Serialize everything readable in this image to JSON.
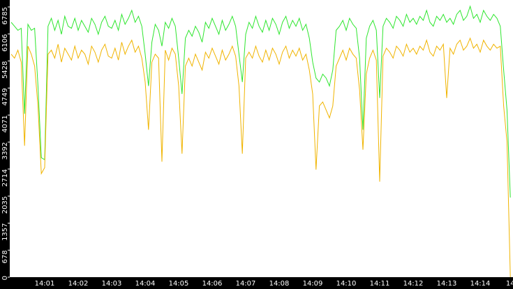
{
  "chart_data": {
    "type": "line",
    "categories": [
      null,
      null,
      null,
      null,
      null,
      null,
      null,
      null,
      null,
      null,
      "14:01",
      null,
      null,
      null,
      null,
      null,
      null,
      null,
      null,
      null,
      "14:02",
      null,
      null,
      null,
      null,
      null,
      null,
      null,
      null,
      null,
      "14:03",
      null,
      null,
      null,
      null,
      null,
      null,
      null,
      null,
      null,
      "14:04",
      null,
      null,
      null,
      null,
      null,
      null,
      null,
      null,
      null,
      "14:05",
      null,
      null,
      null,
      null,
      null,
      null,
      null,
      null,
      null,
      "14:06",
      null,
      null,
      null,
      null,
      null,
      null,
      null,
      null,
      null,
      "14:07",
      null,
      null,
      null,
      null,
      null,
      null,
      null,
      null,
      null,
      "14:08",
      null,
      null,
      null,
      null,
      null,
      null,
      null,
      null,
      null,
      "14:09",
      null,
      null,
      null,
      null,
      null,
      null,
      null,
      null,
      null,
      "14:10",
      null,
      null,
      null,
      null,
      null,
      null,
      null,
      null,
      null,
      "14:11",
      null,
      null,
      null,
      null,
      null,
      null,
      null,
      null,
      null,
      "14:12",
      null,
      null,
      null,
      null,
      null,
      null,
      null,
      null,
      null,
      "14:13",
      null,
      null,
      null,
      null,
      null,
      null,
      null,
      null,
      null,
      "14:14",
      null,
      null,
      null,
      null,
      null,
      null,
      null,
      null,
      "14"
    ],
    "series": [
      {
        "color": "#2ee62e",
        "values": [
          6400,
          6300,
          6200,
          6250,
          4100,
          6350,
          6200,
          6250,
          4800,
          3000,
          2950,
          6300,
          6500,
          6200,
          6450,
          6100,
          6550,
          6300,
          6250,
          6500,
          6200,
          6450,
          6300,
          6150,
          6500,
          6350,
          6100,
          6400,
          6550,
          6300,
          6250,
          6450,
          6200,
          6600,
          6350,
          6500,
          6700,
          6400,
          6550,
          6300,
          5600,
          4800,
          5900,
          6350,
          6200,
          5800,
          6400,
          6250,
          6500,
          6300,
          5500,
          4600,
          6000,
          6200,
          6050,
          6300,
          6150,
          5900,
          6400,
          6250,
          6500,
          6300,
          6100,
          6450,
          6200,
          6350,
          6550,
          6300,
          5600,
          4900,
          6100,
          6400,
          6250,
          6550,
          6300,
          6150,
          6450,
          6200,
          6500,
          6350,
          6100,
          6400,
          6550,
          6250,
          6450,
          6300,
          6500,
          6200,
          6350,
          6000,
          5400,
          5000,
          4900,
          5100,
          5000,
          4800,
          5200,
          6200,
          6300,
          6450,
          6200,
          6500,
          6350,
          6250,
          5500,
          3700,
          6000,
          6300,
          6450,
          6200,
          4500,
          6300,
          6500,
          6400,
          6250,
          6550,
          6450,
          6300,
          6600,
          6400,
          6500,
          6350,
          6550,
          6450,
          6700,
          6400,
          6300,
          6550,
          6450,
          6600,
          6400,
          6500,
          6350,
          6600,
          6700,
          6450,
          6550,
          6800,
          6500,
          6600,
          6400,
          6700,
          6550,
          6450,
          6600,
          6500,
          6300,
          5200,
          4200,
          2000
        ]
      },
      {
        "color": "#f0b400",
        "values": [
          5600,
          5500,
          5700,
          5400,
          3300,
          5800,
          5600,
          5300,
          4300,
          2600,
          2750,
          5600,
          5700,
          5500,
          5850,
          5400,
          5750,
          5600,
          5450,
          5800,
          5500,
          5700,
          5600,
          5350,
          5800,
          5650,
          5400,
          5700,
          5850,
          5550,
          5500,
          5750,
          5450,
          5900,
          5600,
          5800,
          5950,
          5650,
          5800,
          5500,
          4900,
          3700,
          5400,
          5600,
          5500,
          2900,
          5700,
          5450,
          5750,
          5600,
          4800,
          3100,
          5300,
          5500,
          5300,
          5600,
          5400,
          5200,
          5650,
          5500,
          5750,
          5550,
          5350,
          5700,
          5450,
          5600,
          5800,
          5550,
          4800,
          3100,
          5500,
          5650,
          5500,
          5800,
          5550,
          5400,
          5700,
          5450,
          5750,
          5600,
          5350,
          5650,
          5800,
          5500,
          5700,
          5550,
          5750,
          5450,
          5600,
          5200,
          4600,
          2700,
          4300,
          4400,
          4200,
          4000,
          4300,
          5300,
          5500,
          5700,
          5450,
          5750,
          5600,
          5500,
          4700,
          3200,
          5100,
          5500,
          5700,
          5450,
          2400,
          5550,
          5750,
          5650,
          5500,
          5800,
          5700,
          5550,
          5850,
          5650,
          5750,
          5600,
          5800,
          5700,
          5950,
          5650,
          5550,
          5800,
          5700,
          5850,
          4500,
          5750,
          5600,
          5850,
          5950,
          5700,
          5800,
          6000,
          5750,
          5850,
          5650,
          5950,
          5800,
          5700,
          5850,
          5750,
          5800,
          4300,
          3400,
          0
        ]
      }
    ],
    "ylim": [
      0,
      6785
    ],
    "yticks": [
      0,
      678,
      1357,
      2035,
      2714,
      3392,
      4071,
      4749,
      5428,
      6106,
      6785
    ]
  }
}
